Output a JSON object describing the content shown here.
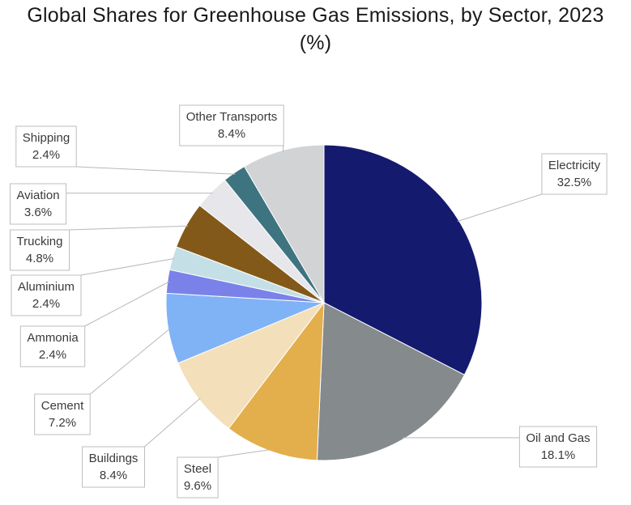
{
  "chart_data": {
    "type": "pie",
    "title": "Global Shares for Greenhouse Gas Emissions, by Sector, 2023",
    "subtitle": "(%)",
    "slices": [
      {
        "label": "Electricity",
        "value": 32.5,
        "value_text": "32.5%",
        "color": "#141a6e"
      },
      {
        "label": "Oil and Gas",
        "value": 18.1,
        "value_text": "18.1%",
        "color": "#858a8c"
      },
      {
        "label": "Steel",
        "value": 9.6,
        "value_text": "9.6%",
        "color": "#e3ae4c"
      },
      {
        "label": "Buildings",
        "value": 8.4,
        "value_text": "8.4%",
        "color": "#f3dfb9"
      },
      {
        "label": "Cement",
        "value": 7.2,
        "value_text": "7.2%",
        "color": "#80b3f5"
      },
      {
        "label": "Ammonia",
        "value": 2.4,
        "value_text": "2.4%",
        "color": "#7a82ea"
      },
      {
        "label": "Aluminium",
        "value": 2.4,
        "value_text": "2.4%",
        "color": "#c4e0e6"
      },
      {
        "label": "Trucking",
        "value": 4.8,
        "value_text": "4.8%",
        "color": "#83591a"
      },
      {
        "label": "Aviation",
        "value": 3.6,
        "value_text": "3.6%",
        "color": "#e7e7eb"
      },
      {
        "label": "Shipping",
        "value": 2.4,
        "value_text": "2.4%",
        "color": "#3e7480"
      },
      {
        "label": "Other Transports",
        "value": 8.4,
        "value_text": "8.4%",
        "color": "#d1d3d5"
      }
    ],
    "start_angle": "12 o'clock",
    "direction": "clockwise",
    "legend": "none",
    "data_labels": "callout boxes with leader lines"
  }
}
